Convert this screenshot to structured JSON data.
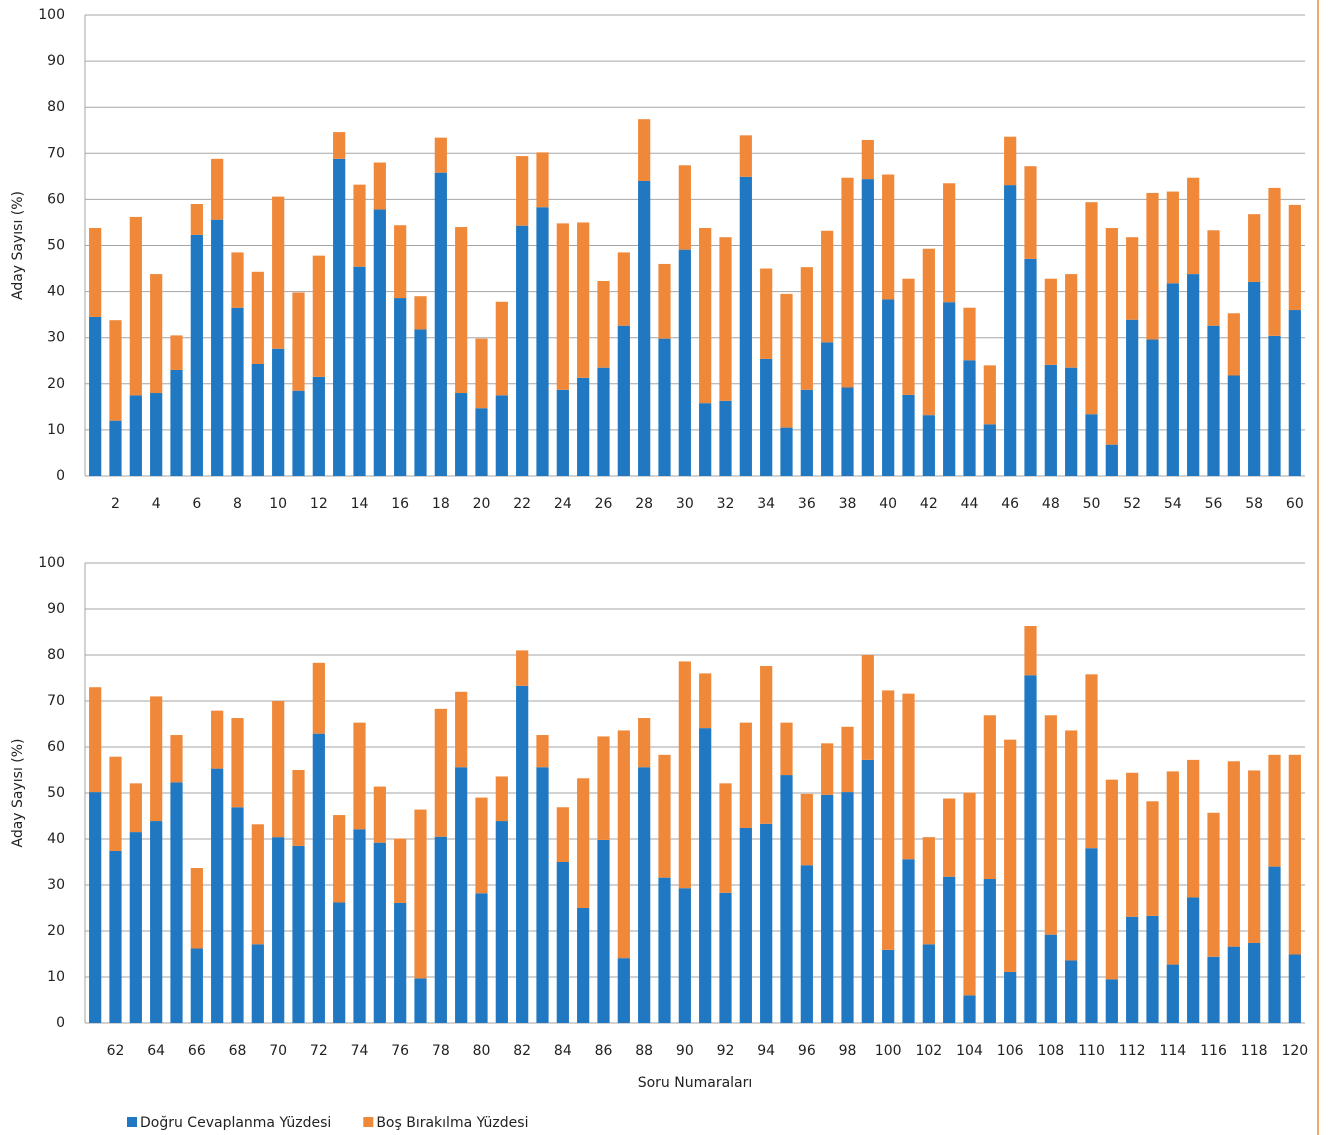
{
  "chart_data": [
    {
      "type": "bar",
      "stacked": true,
      "y_label": "Aday Sayısı (%)",
      "categories": [
        null,
        2,
        null,
        4,
        null,
        6,
        null,
        8,
        null,
        10,
        null,
        12,
        null,
        14,
        null,
        16,
        null,
        18,
        null,
        20,
        null,
        22,
        null,
        24,
        null,
        26,
        null,
        28,
        null,
        30,
        null,
        32,
        null,
        34,
        null,
        36,
        null,
        38,
        null,
        40,
        null,
        42,
        null,
        44,
        null,
        46,
        null,
        48,
        null,
        50,
        null,
        52,
        null,
        54,
        null,
        56,
        null,
        58,
        null,
        60
      ],
      "series": [
        {
          "color": "#1f78c1",
          "values": [
            34.5,
            12,
            17.5,
            18,
            23,
            52.3,
            55.6,
            36.5,
            24.3,
            27.6,
            18.5,
            21.5,
            68.8,
            45.4,
            57.8,
            38.6,
            31.8,
            65.8,
            18,
            14.7,
            17.5,
            54.3,
            58.3,
            18.7,
            21.3,
            23.5,
            32.6,
            64,
            29.8,
            49.1,
            15.8,
            16.3,
            64.9,
            25.4,
            10.5,
            18.7,
            29,
            19.2,
            64.4,
            38.3,
            17.6,
            13.2,
            37.7,
            25.1,
            11.2,
            63.1,
            47.1,
            24.1,
            23.5,
            13.4,
            6.8,
            33.9,
            29.6,
            41.8,
            43.8,
            32.6,
            21.8,
            42.1,
            30.4,
            36
          ]
        },
        {
          "color": "#f0883a",
          "values": [
            19.3,
            21.8,
            38.7,
            25.8,
            7.5,
            6.7,
            13.2,
            12,
            20,
            33,
            21.3,
            26.3,
            5.8,
            17.8,
            10.2,
            15.8,
            7.2,
            7.6,
            36,
            15.1,
            20.3,
            15.1,
            11.9,
            36.1,
            33.7,
            18.8,
            15.9,
            13.4,
            16.2,
            18.3,
            38,
            35.5,
            9,
            19.6,
            29,
            26.6,
            24.2,
            45.5,
            8.5,
            27.1,
            25.2,
            36.1,
            25.8,
            11.4,
            12.8,
            10.5,
            20.1,
            18.7,
            20.3,
            46,
            47,
            17.9,
            31.8,
            19.9,
            20.9,
            20.7,
            13.5,
            14.7,
            32.1,
            22.8
          ]
        }
      ],
      "ylim": [
        0,
        100
      ],
      "yticks": [
        0,
        10,
        20,
        30,
        40,
        50,
        60,
        70,
        80,
        90,
        100
      ],
      "grid": true
    },
    {
      "type": "bar",
      "stacked": true,
      "y_label": "Aday Sayısı (%)",
      "x_label": "Soru Numaraları",
      "legend": "bottom-left",
      "categories": [
        null,
        62,
        null,
        64,
        null,
        66,
        null,
        68,
        null,
        70,
        null,
        72,
        null,
        74,
        null,
        76,
        null,
        78,
        null,
        80,
        null,
        82,
        null,
        84,
        null,
        86,
        null,
        88,
        null,
        90,
        null,
        92,
        null,
        94,
        null,
        96,
        null,
        98,
        null,
        100,
        null,
        102,
        null,
        104,
        null,
        106,
        null,
        108,
        null,
        110,
        null,
        112,
        null,
        114,
        null,
        116,
        null,
        118,
        null,
        120
      ],
      "series": [
        {
          "name": "Doğru Cevaplanma Yüzdesi",
          "color": "#1f78c1",
          "values": [
            50.2,
            37.4,
            41.5,
            43.9,
            52.3,
            16.2,
            55.3,
            46.9,
            17.1,
            40.4,
            38.5,
            62.9,
            26.2,
            42.1,
            39.2,
            26.1,
            9.7,
            40.5,
            55.6,
            28.2,
            43.9,
            73.3,
            55.6,
            35,
            25,
            39.8,
            14.1,
            55.6,
            31.6,
            29.3,
            64.1,
            28.3,
            42.4,
            43.3,
            53.9,
            34.3,
            49.6,
            50.2,
            57.2,
            15.9,
            35.6,
            17.1,
            31.8,
            6,
            31.3,
            11.1,
            75.6,
            19.2,
            13.6,
            38,
            9.5,
            23.1,
            23.3,
            12.7,
            27.3,
            14.4,
            16.6,
            17.4,
            34,
            14.9
          ]
        },
        {
          "name": "Boş Bırakılma Yüzdesi",
          "color": "#f0883a",
          "values": [
            22.8,
            20.5,
            10.6,
            27.1,
            10.3,
            17.5,
            12.6,
            19.4,
            26.1,
            29.6,
            16.5,
            15.4,
            19,
            23.2,
            12.2,
            14,
            36.7,
            27.8,
            16.4,
            20.8,
            9.7,
            7.7,
            7,
            11.9,
            28.2,
            22.5,
            49.5,
            10.7,
            26.7,
            49.3,
            11.9,
            23.8,
            22.9,
            34.3,
            11.4,
            15.5,
            11.2,
            14.2,
            22.8,
            56.4,
            36,
            23.3,
            17,
            44.1,
            35.6,
            50.5,
            10.7,
            47.7,
            50,
            37.8,
            43.4,
            31.3,
            24.9,
            42,
            29.9,
            31.3,
            40.3,
            37.5,
            24.3,
            43.4
          ]
        }
      ],
      "ylim": [
        0,
        100
      ],
      "yticks": [
        0,
        10,
        20,
        30,
        40,
        50,
        60,
        70,
        80,
        90,
        100
      ],
      "grid": true
    }
  ]
}
